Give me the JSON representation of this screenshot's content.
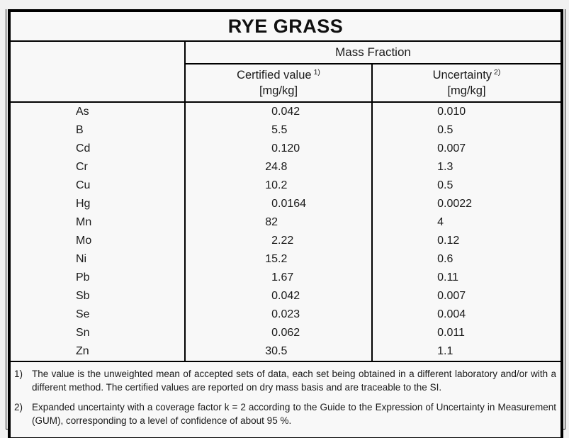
{
  "title": "RYE GRASS",
  "colors": {
    "page_background": "#f1f1f1",
    "sheet_background": "#f8f8f8",
    "border": "#000000",
    "text": "#1a1a1a"
  },
  "table": {
    "group_header": "Mass Fraction",
    "columns": [
      {
        "label": "Certified value",
        "footnote_ref": "1)",
        "unit": "[mg/kg]"
      },
      {
        "label": "Uncertainty",
        "footnote_ref": "2)",
        "unit": "[mg/kg]"
      }
    ],
    "rows": [
      {
        "element": "As",
        "certified": "0.042",
        "uncertainty": "0.010"
      },
      {
        "element": "B",
        "certified": "5.5",
        "uncertainty": "0.5"
      },
      {
        "element": "Cd",
        "certified": "0.120",
        "uncertainty": "0.007"
      },
      {
        "element": "Cr",
        "certified": "24.8",
        "uncertainty": "1.3"
      },
      {
        "element": "Cu",
        "certified": "10.2",
        "uncertainty": "0.5"
      },
      {
        "element": "Hg",
        "certified": "0.0164",
        "uncertainty": "0.0022"
      },
      {
        "element": "Mn",
        "certified": "82",
        "uncertainty": "4"
      },
      {
        "element": "Mo",
        "certified": "2.22",
        "uncertainty": "0.12"
      },
      {
        "element": "Ni",
        "certified": "15.2",
        "uncertainty": "0.6"
      },
      {
        "element": "Pb",
        "certified": "1.67",
        "uncertainty": "0.11"
      },
      {
        "element": "Sb",
        "certified": "0.042",
        "uncertainty": "0.007"
      },
      {
        "element": "Se",
        "certified": "0.023",
        "uncertainty": "0.004"
      },
      {
        "element": "Sn",
        "certified": "0.062",
        "uncertainty": "0.011"
      },
      {
        "element": "Zn",
        "certified": "30.5",
        "uncertainty": "1.1"
      }
    ]
  },
  "footnotes": [
    {
      "marker": "1)",
      "text": "The value is the unweighted mean of accepted sets of data, each set being obtained in a different laboratory and/or with a different method. The certified values are reported on dry mass basis and are traceable to the SI."
    },
    {
      "marker": "2)",
      "text": "Expanded uncertainty with a coverage factor k = 2 according to the Guide to the Expression of Uncertainty in Measurement (GUM), corresponding to a level of confidence of about 95 %."
    }
  ]
}
